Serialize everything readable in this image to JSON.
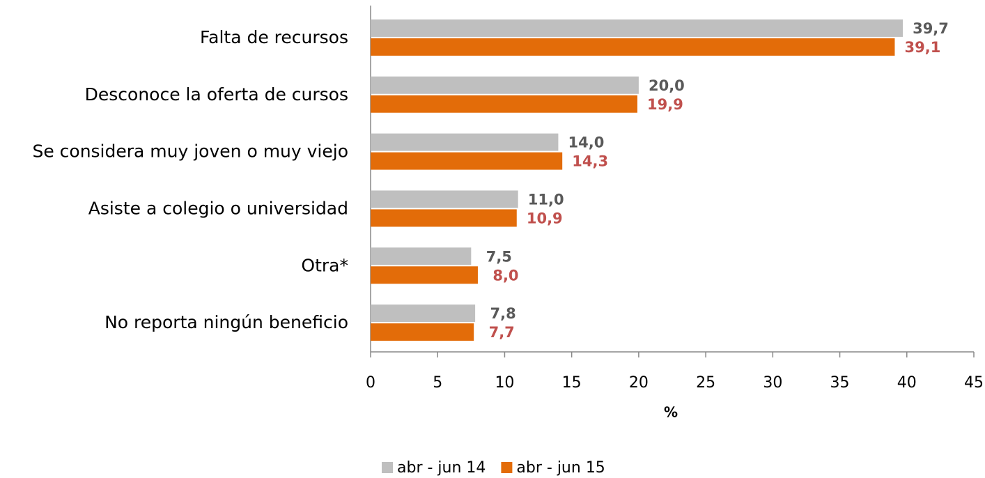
{
  "chart_data": {
    "type": "hbar",
    "categories": [
      "Falta de recursos",
      "Desconoce la oferta de cursos",
      "Se considera muy joven o muy viejo",
      "Asiste a colegio o universidad",
      "Otra*",
      "No reporta ningún beneficio"
    ],
    "series": [
      {
        "name": "abr - jun 14",
        "color": "#bfbfbf",
        "label_color": "#595959",
        "values": [
          39.7,
          20.0,
          14.0,
          11.0,
          7.5,
          7.8
        ],
        "value_labels": [
          "39,7",
          "20,0",
          "14,0",
          "11,0",
          "7,5",
          "7,8"
        ]
      },
      {
        "name": "abr - jun 15",
        "color": "#e36c09",
        "label_color": "#c0504d",
        "values": [
          39.1,
          19.9,
          14.3,
          10.9,
          8.0,
          7.7
        ],
        "value_labels": [
          "39,1",
          "19,9",
          "14,3",
          "10,9",
          "8,0",
          "7,7"
        ]
      }
    ],
    "xlabel": "%",
    "xlim": [
      0,
      45
    ],
    "xticks": [
      0,
      5,
      10,
      15,
      20,
      25,
      30,
      35,
      40,
      45
    ]
  }
}
